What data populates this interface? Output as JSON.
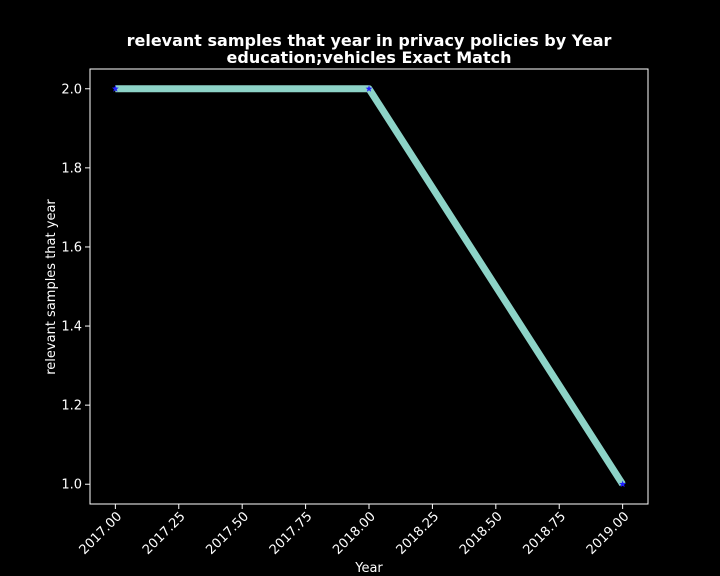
{
  "chart_data": {
    "type": "line",
    "title": "relevant samples that year in privacy policies by Year",
    "subtitle": "education;vehicles Exact Match",
    "xlabel": "Year",
    "ylabel": "relevant samples that year",
    "x": [
      2017,
      2018,
      2019
    ],
    "series": [
      {
        "values": [
          2.0,
          1.9999,
          1.0
        ]
      }
    ],
    "xlim": [
      2016.9,
      2019.1
    ],
    "ylim": [
      0.95,
      2.05
    ],
    "xticks": [
      2017.0,
      2017.25,
      2017.5,
      2017.75,
      2018.0,
      2018.25,
      2018.5,
      2018.75,
      2019.0
    ],
    "xtick_labels": [
      "2017.00",
      "2017.25",
      "2017.50",
      "2017.75",
      "2018.00",
      "2018.25",
      "2018.50",
      "2018.75",
      "2019.00"
    ],
    "yticks": [
      1.0,
      1.2,
      1.4,
      1.6,
      1.8,
      2.0
    ],
    "ytick_labels": [
      "1.0",
      "1.2",
      "1.4",
      "1.6",
      "1.8",
      "2.0"
    ],
    "grid": false,
    "legend": "none",
    "colors": {
      "background": "#000000",
      "text": "#ffffff",
      "line": "#8dd3c7",
      "marker": "#1f1fff",
      "axes": "#ffffff"
    }
  }
}
